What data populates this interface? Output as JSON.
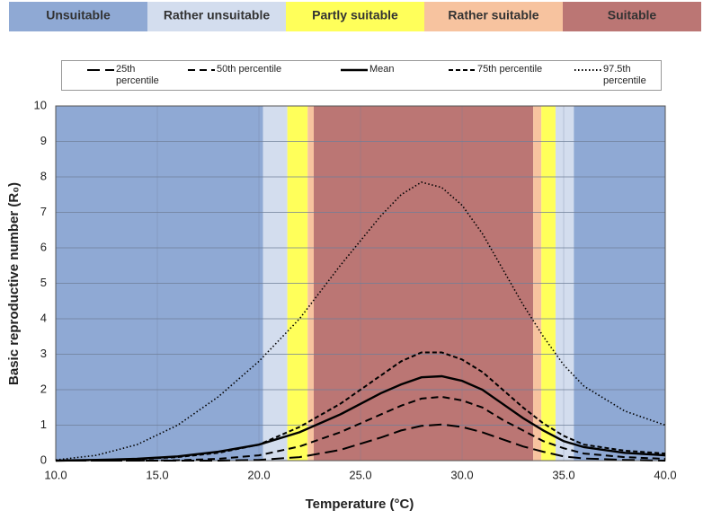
{
  "chart_data": {
    "type": "line",
    "zones": [
      {
        "name": "Unsuitable",
        "color": "#8fa9d4"
      },
      {
        "name": "Rather unsuitable",
        "color": "#d3ddee"
      },
      {
        "name": "Partly suitable",
        "color": "#ffff5a"
      },
      {
        "name": "Rather suitable",
        "color": "#f7c39f"
      },
      {
        "name": "Suitable",
        "color": "#bb7674"
      }
    ],
    "bands": [
      {
        "from": 10,
        "to": 20.2,
        "zone": 0
      },
      {
        "from": 20.2,
        "to": 21.4,
        "zone": 1
      },
      {
        "from": 21.4,
        "to": 22.4,
        "zone": 2
      },
      {
        "from": 22.4,
        "to": 22.7,
        "zone": 3
      },
      {
        "from": 22.7,
        "to": 33.5,
        "zone": 4
      },
      {
        "from": 33.5,
        "to": 33.9,
        "zone": 3
      },
      {
        "from": 33.9,
        "to": 34.6,
        "zone": 2
      },
      {
        "from": 34.6,
        "to": 35.5,
        "zone": 1
      },
      {
        "from": 35.5,
        "to": 40,
        "zone": 0
      }
    ],
    "x_label": "Temperature (°C)",
    "y_label": "Basic reproductive number (R₀)",
    "x": [
      10,
      12,
      14,
      16,
      18,
      20,
      22,
      24,
      26,
      27,
      28,
      29,
      30,
      31,
      32,
      33,
      34,
      35,
      36,
      38,
      40
    ],
    "series": [
      {
        "name": "25th percentile",
        "color": "#000000",
        "dash": "long-dash",
        "values": [
          0,
          0,
          0,
          0,
          0,
          0.02,
          0.1,
          0.3,
          0.65,
          0.85,
          0.98,
          1.02,
          0.95,
          0.8,
          0.6,
          0.4,
          0.25,
          0.12,
          0.06,
          0.02,
          0
        ]
      },
      {
        "name": "50th percentile",
        "color": "#000000",
        "dash": "dash",
        "values": [
          0,
          0,
          0,
          0.01,
          0.05,
          0.15,
          0.4,
          0.8,
          1.3,
          1.55,
          1.75,
          1.8,
          1.7,
          1.5,
          1.15,
          0.85,
          0.55,
          0.35,
          0.2,
          0.1,
          0.05
        ]
      },
      {
        "name": "Mean",
        "color": "#000000",
        "dash": "solid",
        "values": [
          0,
          0.02,
          0.05,
          0.12,
          0.25,
          0.45,
          0.8,
          1.3,
          1.9,
          2.15,
          2.35,
          2.38,
          2.25,
          2.0,
          1.6,
          1.2,
          0.85,
          0.55,
          0.38,
          0.22,
          0.15
        ]
      },
      {
        "name": "75th percentile",
        "color": "#000000",
        "dash": "short-dash",
        "values": [
          0,
          0.01,
          0.04,
          0.1,
          0.22,
          0.45,
          0.95,
          1.6,
          2.4,
          2.8,
          3.05,
          3.05,
          2.85,
          2.5,
          2.0,
          1.5,
          1.05,
          0.7,
          0.45,
          0.28,
          0.2
        ]
      },
      {
        "name": "97.5th percentile",
        "color": "#000000",
        "dash": "dot",
        "values": [
          0.02,
          0.15,
          0.45,
          1.0,
          1.8,
          2.8,
          4.0,
          5.5,
          6.9,
          7.5,
          7.85,
          7.7,
          7.2,
          6.4,
          5.4,
          4.4,
          3.5,
          2.7,
          2.1,
          1.4,
          1.0
        ]
      }
    ],
    "xlim": [
      10,
      40
    ],
    "xticks": [
      {
        "value": 10,
        "label": "10.0"
      },
      {
        "value": 15,
        "label": "15.0"
      },
      {
        "value": 20,
        "label": "20.0"
      },
      {
        "value": 25,
        "label": "25.0"
      },
      {
        "value": 30,
        "label": "30.0"
      },
      {
        "value": 35,
        "label": "35.0"
      },
      {
        "value": 40,
        "label": "40.0"
      }
    ],
    "ylim": [
      0,
      10
    ],
    "yticks": [
      0,
      1,
      2,
      3,
      4,
      5,
      6,
      7,
      8,
      9,
      10
    ],
    "grid": true
  }
}
